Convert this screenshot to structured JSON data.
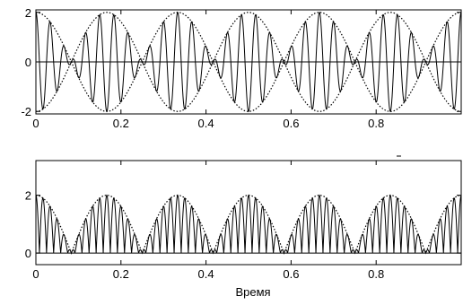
{
  "chart_data": [
    {
      "type": "line",
      "title": "",
      "xlabel": "",
      "ylabel": "",
      "xlim": [
        0,
        1
      ],
      "ylim": [
        -2.1,
        2.1
      ],
      "x_ticks": [
        "0",
        "0.2",
        "0.4",
        "0.6",
        "0.8"
      ],
      "y_ticks": [
        "-2",
        "0",
        "2"
      ],
      "series": [
        {
          "name": "",
          "style": "solid",
          "expression": "2*cos(2*pi*3*t)*cos(2*pi*30*t)",
          "samples": 1200
        },
        {
          "name": "",
          "style": "dotted",
          "expression": "2*cos(2*pi*3*t)",
          "samples": 300
        },
        {
          "name": "",
          "style": "dotted",
          "expression": "-2*cos(2*pi*3*t)",
          "samples": 300
        }
      ],
      "envelope_frequency_hz": 3,
      "carrier_frequency_hz": 30,
      "amplitude": 2,
      "grid": false
    },
    {
      "type": "line",
      "title": "",
      "xlabel": "Время",
      "ylabel": "",
      "xlim": [
        0,
        1
      ],
      "ylim": [
        -0.4,
        3.2
      ],
      "x_ticks": [
        "0",
        "0.2",
        "0.4",
        "0.6",
        "0.8"
      ],
      "y_ticks": [
        "0",
        "2"
      ],
      "series": [
        {
          "name": "",
          "style": "solid",
          "expression": "|2*cos(2*pi*3*t)*cos(2*pi*30*t)|",
          "samples": 1200
        },
        {
          "name": "",
          "style": "dotted",
          "expression": "|2*cos(2*pi*3*t)|",
          "samples": 300
        }
      ],
      "envelope_frequency_hz": 3,
      "carrier_frequency_hz": 30,
      "amplitude": 2,
      "grid": false
    }
  ]
}
